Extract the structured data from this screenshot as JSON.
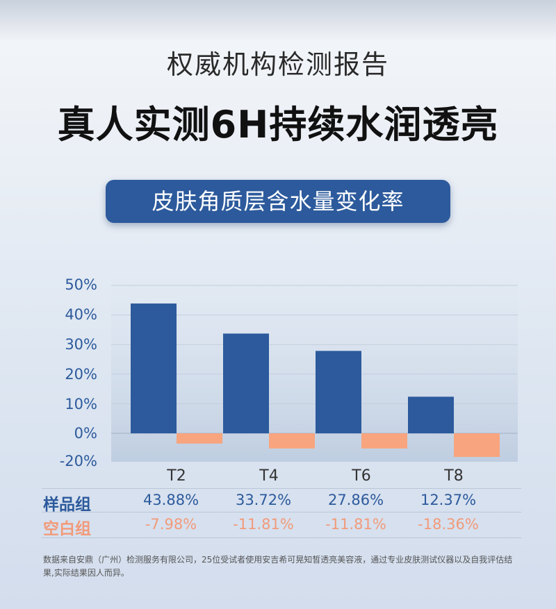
{
  "header": {
    "subtitle": "权威机构检测报告",
    "title": "真人实测6H持续水润透亮"
  },
  "chart_data": {
    "type": "bar",
    "title": "皮肤角质层含水量变化率",
    "categories": [
      "T2",
      "T4",
      "T6",
      "T8"
    ],
    "ytick_labels": [
      "50%",
      "40%",
      "30%",
      "20%",
      "10%",
      "0%",
      "-20%"
    ],
    "series": [
      {
        "name": "样品组",
        "values": [
          43.88,
          33.72,
          27.86,
          12.37
        ],
        "labels": [
          "43.88%",
          "33.72%",
          "27.86%",
          "12.37%"
        ],
        "color": "#2c5a9c"
      },
      {
        "name": "空白组",
        "values": [
          -7.98,
          -11.81,
          -11.81,
          -18.36
        ],
        "labels": [
          "-7.98%",
          "-11.81%",
          "-11.81%",
          "-18.36%"
        ],
        "color": "#f8a47e"
      }
    ],
    "grid": true
  },
  "footnote": "数据来自安鼎（广州）检测服务有限公司，25位受试者使用安吉希可晃知皙透亮美容液，通过专业皮肤测试仪器以及自我评估结果,实际结果因人而异。"
}
